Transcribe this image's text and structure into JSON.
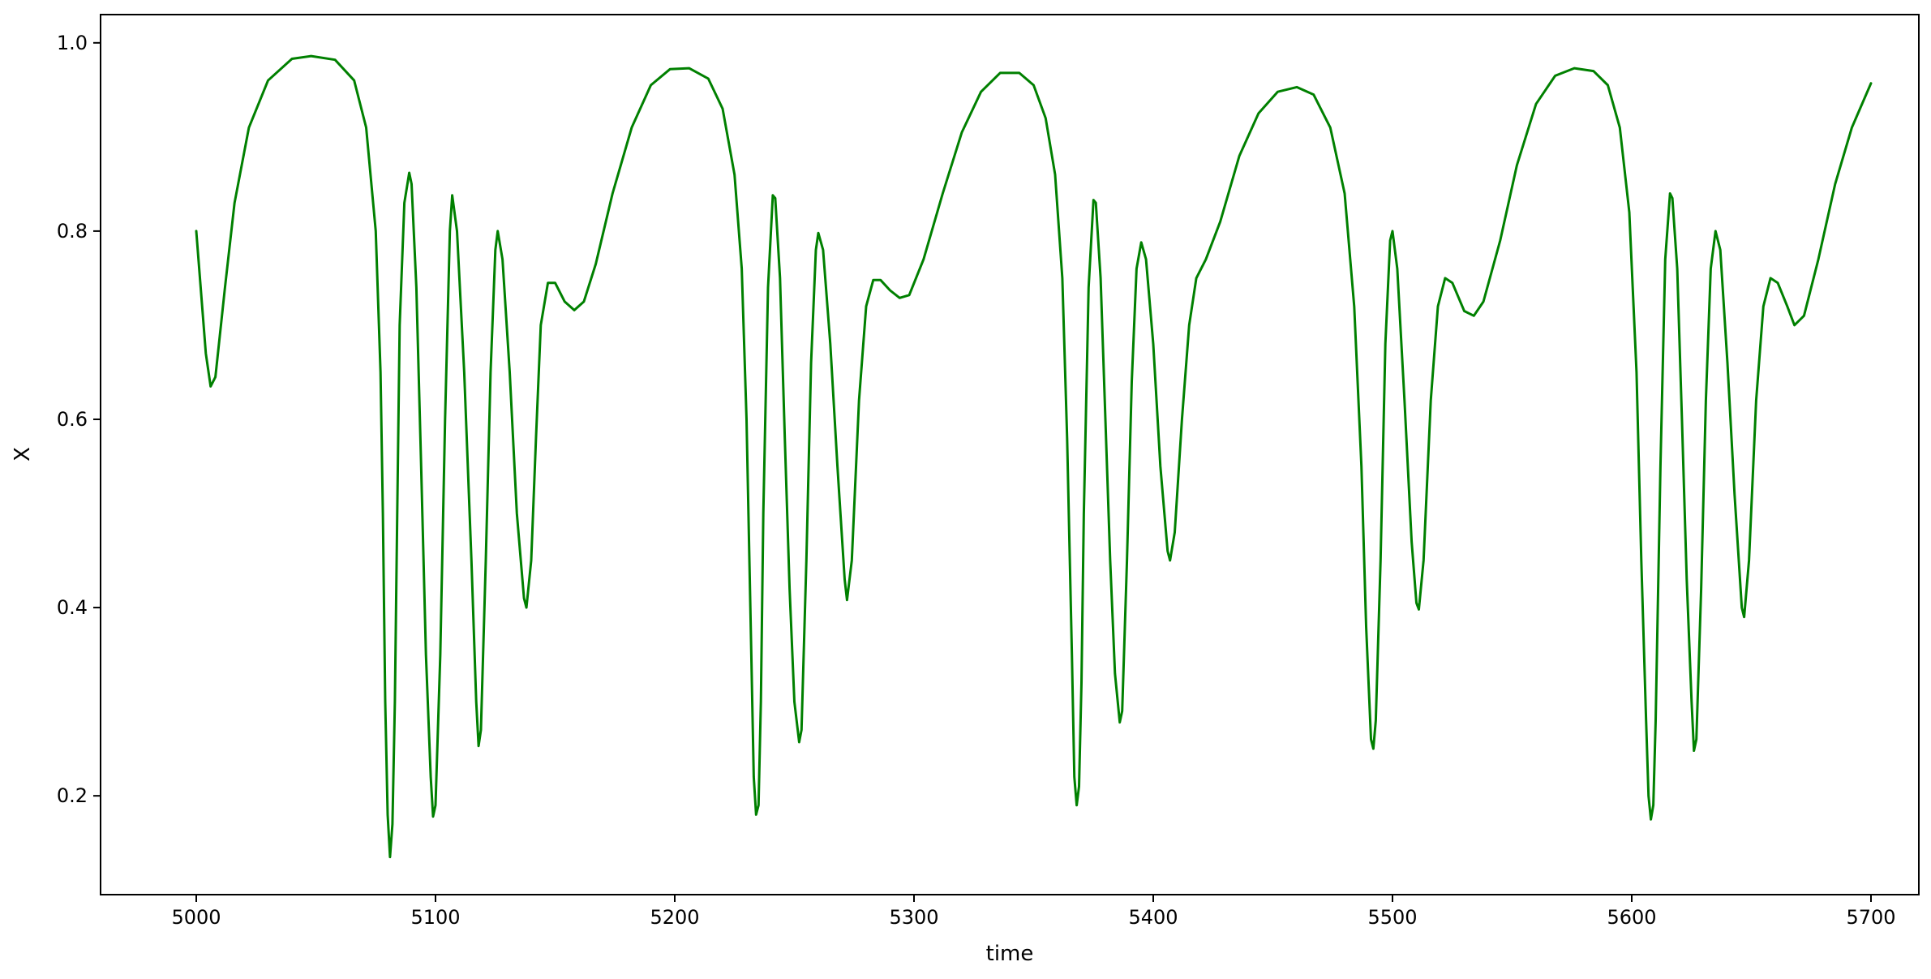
{
  "chart_data": {
    "type": "line",
    "title": "",
    "xlabel": "time",
    "ylabel": "X",
    "xlim": [
      4960,
      5720
    ],
    "ylim": [
      0.095,
      1.03
    ],
    "xticks": [
      5000,
      5100,
      5200,
      5300,
      5400,
      5500,
      5600,
      5700
    ],
    "xtick_labels": [
      "5000",
      "5100",
      "5200",
      "5300",
      "5400",
      "5500",
      "5600",
      "5700"
    ],
    "yticks": [
      0.2,
      0.4,
      0.6,
      0.8,
      1.0
    ],
    "ytick_labels": [
      "0.2",
      "0.4",
      "0.6",
      "0.8",
      "1.0"
    ],
    "grid": false,
    "legend": "none",
    "series": [
      {
        "color": "#008000",
        "points": [
          [
            5000,
            0.8
          ],
          [
            5004,
            0.67
          ],
          [
            5006,
            0.635
          ],
          [
            5008,
            0.645
          ],
          [
            5012,
            0.74
          ],
          [
            5016,
            0.83
          ],
          [
            5022,
            0.91
          ],
          [
            5030,
            0.96
          ],
          [
            5040,
            0.983
          ],
          [
            5048,
            0.986
          ],
          [
            5058,
            0.982
          ],
          [
            5066,
            0.96
          ],
          [
            5071,
            0.91
          ],
          [
            5075,
            0.8
          ],
          [
            5077,
            0.65
          ],
          [
            5078,
            0.5
          ],
          [
            5079,
            0.3
          ],
          [
            5080,
            0.18
          ],
          [
            5081,
            0.135
          ],
          [
            5082,
            0.17
          ],
          [
            5083,
            0.3
          ],
          [
            5084,
            0.5
          ],
          [
            5085,
            0.7
          ],
          [
            5087,
            0.83
          ],
          [
            5089,
            0.862
          ],
          [
            5090,
            0.85
          ],
          [
            5092,
            0.74
          ],
          [
            5094,
            0.55
          ],
          [
            5096,
            0.35
          ],
          [
            5098,
            0.22
          ],
          [
            5099,
            0.178
          ],
          [
            5100,
            0.19
          ],
          [
            5102,
            0.35
          ],
          [
            5104,
            0.6
          ],
          [
            5106,
            0.8
          ],
          [
            5107,
            0.838
          ],
          [
            5109,
            0.8
          ],
          [
            5112,
            0.65
          ],
          [
            5115,
            0.45
          ],
          [
            5117,
            0.3
          ],
          [
            5118,
            0.253
          ],
          [
            5119,
            0.27
          ],
          [
            5121,
            0.45
          ],
          [
            5123,
            0.65
          ],
          [
            5125,
            0.78
          ],
          [
            5126,
            0.8
          ],
          [
            5128,
            0.77
          ],
          [
            5131,
            0.65
          ],
          [
            5134,
            0.5
          ],
          [
            5137,
            0.41
          ],
          [
            5138,
            0.4
          ],
          [
            5140,
            0.45
          ],
          [
            5142,
            0.58
          ],
          [
            5144,
            0.7
          ],
          [
            5147,
            0.745
          ],
          [
            5150,
            0.745
          ],
          [
            5154,
            0.725
          ],
          [
            5158,
            0.716
          ],
          [
            5162,
            0.725
          ],
          [
            5167,
            0.765
          ],
          [
            5174,
            0.84
          ],
          [
            5182,
            0.91
          ],
          [
            5190,
            0.955
          ],
          [
            5198,
            0.972
          ],
          [
            5206,
            0.973
          ],
          [
            5214,
            0.962
          ],
          [
            5220,
            0.93
          ],
          [
            5225,
            0.86
          ],
          [
            5228,
            0.76
          ],
          [
            5230,
            0.6
          ],
          [
            5232,
            0.35
          ],
          [
            5233,
            0.22
          ],
          [
            5234,
            0.18
          ],
          [
            5235,
            0.19
          ],
          [
            5236,
            0.3
          ],
          [
            5237,
            0.5
          ],
          [
            5239,
            0.74
          ],
          [
            5241,
            0.838
          ],
          [
            5242,
            0.835
          ],
          [
            5244,
            0.75
          ],
          [
            5246,
            0.58
          ],
          [
            5248,
            0.42
          ],
          [
            5250,
            0.3
          ],
          [
            5252,
            0.257
          ],
          [
            5253,
            0.27
          ],
          [
            5255,
            0.45
          ],
          [
            5257,
            0.66
          ],
          [
            5259,
            0.78
          ],
          [
            5260,
            0.798
          ],
          [
            5262,
            0.78
          ],
          [
            5265,
            0.68
          ],
          [
            5268,
            0.55
          ],
          [
            5271,
            0.43
          ],
          [
            5272,
            0.408
          ],
          [
            5274,
            0.45
          ],
          [
            5277,
            0.62
          ],
          [
            5280,
            0.72
          ],
          [
            5283,
            0.748
          ],
          [
            5286,
            0.748
          ],
          [
            5290,
            0.737
          ],
          [
            5294,
            0.729
          ],
          [
            5298,
            0.732
          ],
          [
            5304,
            0.77
          ],
          [
            5312,
            0.84
          ],
          [
            5320,
            0.905
          ],
          [
            5328,
            0.948
          ],
          [
            5336,
            0.968
          ],
          [
            5344,
            0.968
          ],
          [
            5350,
            0.955
          ],
          [
            5355,
            0.92
          ],
          [
            5359,
            0.86
          ],
          [
            5362,
            0.75
          ],
          [
            5364,
            0.58
          ],
          [
            5366,
            0.35
          ],
          [
            5367,
            0.22
          ],
          [
            5368,
            0.19
          ],
          [
            5369,
            0.21
          ],
          [
            5370,
            0.32
          ],
          [
            5371,
            0.5
          ],
          [
            5373,
            0.74
          ],
          [
            5375,
            0.833
          ],
          [
            5376,
            0.83
          ],
          [
            5378,
            0.75
          ],
          [
            5380,
            0.6
          ],
          [
            5382,
            0.45
          ],
          [
            5384,
            0.33
          ],
          [
            5386,
            0.278
          ],
          [
            5387,
            0.29
          ],
          [
            5389,
            0.45
          ],
          [
            5391,
            0.64
          ],
          [
            5393,
            0.76
          ],
          [
            5395,
            0.788
          ],
          [
            5397,
            0.77
          ],
          [
            5400,
            0.68
          ],
          [
            5403,
            0.55
          ],
          [
            5406,
            0.46
          ],
          [
            5407,
            0.45
          ],
          [
            5409,
            0.48
          ],
          [
            5412,
            0.6
          ],
          [
            5415,
            0.7
          ],
          [
            5418,
            0.75
          ],
          [
            5422,
            0.77
          ],
          [
            5428,
            0.81
          ],
          [
            5436,
            0.88
          ],
          [
            5444,
            0.925
          ],
          [
            5452,
            0.948
          ],
          [
            5460,
            0.953
          ],
          [
            5467,
            0.945
          ],
          [
            5474,
            0.91
          ],
          [
            5480,
            0.84
          ],
          [
            5484,
            0.72
          ],
          [
            5487,
            0.55
          ],
          [
            5489,
            0.38
          ],
          [
            5491,
            0.26
          ],
          [
            5492,
            0.25
          ],
          [
            5493,
            0.28
          ],
          [
            5495,
            0.45
          ],
          [
            5497,
            0.68
          ],
          [
            5499,
            0.79
          ],
          [
            5500,
            0.8
          ],
          [
            5502,
            0.76
          ],
          [
            5505,
            0.62
          ],
          [
            5508,
            0.47
          ],
          [
            5510,
            0.405
          ],
          [
            5511,
            0.398
          ],
          [
            5513,
            0.45
          ],
          [
            5516,
            0.62
          ],
          [
            5519,
            0.72
          ],
          [
            5522,
            0.75
          ],
          [
            5525,
            0.745
          ],
          [
            5530,
            0.715
          ],
          [
            5534,
            0.71
          ],
          [
            5538,
            0.725
          ],
          [
            5545,
            0.79
          ],
          [
            5552,
            0.87
          ],
          [
            5560,
            0.935
          ],
          [
            5568,
            0.965
          ],
          [
            5576,
            0.973
          ],
          [
            5584,
            0.97
          ],
          [
            5590,
            0.955
          ],
          [
            5595,
            0.91
          ],
          [
            5599,
            0.82
          ],
          [
            5602,
            0.65
          ],
          [
            5604,
            0.45
          ],
          [
            5606,
            0.28
          ],
          [
            5607,
            0.2
          ],
          [
            5608,
            0.175
          ],
          [
            5609,
            0.19
          ],
          [
            5610,
            0.28
          ],
          [
            5612,
            0.55
          ],
          [
            5614,
            0.77
          ],
          [
            5616,
            0.84
          ],
          [
            5617,
            0.835
          ],
          [
            5619,
            0.76
          ],
          [
            5621,
            0.6
          ],
          [
            5623,
            0.43
          ],
          [
            5625,
            0.3
          ],
          [
            5626,
            0.248
          ],
          [
            5627,
            0.26
          ],
          [
            5629,
            0.42
          ],
          [
            5631,
            0.62
          ],
          [
            5633,
            0.76
          ],
          [
            5635,
            0.8
          ],
          [
            5637,
            0.78
          ],
          [
            5640,
            0.66
          ],
          [
            5643,
            0.52
          ],
          [
            5646,
            0.4
          ],
          [
            5647,
            0.39
          ],
          [
            5649,
            0.45
          ],
          [
            5652,
            0.62
          ],
          [
            5655,
            0.72
          ],
          [
            5658,
            0.75
          ],
          [
            5661,
            0.745
          ],
          [
            5665,
            0.72
          ],
          [
            5668,
            0.7
          ],
          [
            5672,
            0.71
          ],
          [
            5678,
            0.77
          ],
          [
            5685,
            0.85
          ],
          [
            5692,
            0.91
          ],
          [
            5700,
            0.957
          ]
        ]
      }
    ]
  }
}
